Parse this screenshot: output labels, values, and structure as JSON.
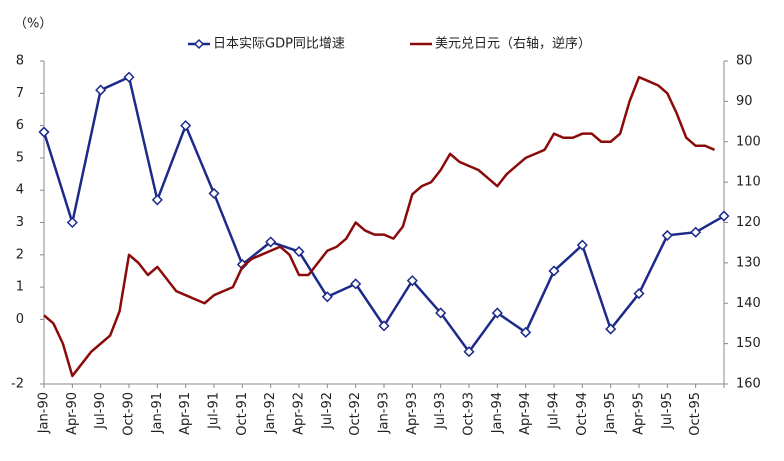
{
  "chart_data": {
    "type": "line",
    "y_label": "（%）",
    "categories": [
      "Jan-90",
      "Apr-90",
      "Jul-90",
      "Oct-90",
      "Jan-91",
      "Apr-91",
      "Jul-91",
      "Oct-91",
      "Jan-92",
      "Apr-92",
      "Jul-92",
      "Oct-92",
      "Jan-93",
      "Apr-93",
      "Jul-93",
      "Oct-93",
      "Jan-94",
      "Apr-94",
      "Jul-94",
      "Oct-94",
      "Jan-95",
      "Apr-95",
      "Jul-95",
      "Oct-95",
      null
    ],
    "series": [
      {
        "name": "日本实际GDP同比增速",
        "color": "#1c2a8a",
        "marker": "diamond",
        "values": [
          5.8,
          3.0,
          7.1,
          7.5,
          3.7,
          6.0,
          3.9,
          1.7,
          2.4,
          2.1,
          0.7,
          1.1,
          -0.2,
          1.2,
          0.2,
          -1.0,
          0.2,
          -0.4,
          1.5,
          2.3,
          -0.3,
          0.8,
          2.6,
          2.7,
          3.2
        ]
      },
      {
        "name": "美元兑日元（右轴，逆序）",
        "color": "#8b0a0a",
        "axis": "y2",
        "x": [
          "Jan-90",
          "Feb-90",
          "Mar-90",
          "Apr-90",
          "May-90",
          "Jun-90",
          "Jul-90",
          "Aug-90",
          "Sep-90",
          "Oct-90",
          "Nov-90",
          "Dec-90",
          "Jan-91",
          "Feb-91",
          "Mar-91",
          "Apr-91",
          "May-91",
          "Jun-91",
          "Jul-91",
          "Aug-91",
          "Sep-91",
          "Oct-91",
          "Nov-91",
          "Dec-91",
          "Jan-92",
          "Feb-92",
          "Mar-92",
          "Apr-92",
          "May-92",
          "Jun-92",
          "Jul-92",
          "Aug-92",
          "Sep-92",
          "Oct-92",
          "Nov-92",
          "Dec-92",
          "Jan-93",
          "Feb-93",
          "Mar-93",
          "Apr-93",
          "May-93",
          "Jun-93",
          "Jul-93",
          "Aug-93",
          "Sep-93",
          "Oct-93",
          "Nov-93",
          "Dec-93",
          "Jan-94",
          "Feb-94",
          "Mar-94",
          "Apr-94",
          "May-94",
          "Jun-94",
          "Jul-94",
          "Aug-94",
          "Sep-94",
          "Oct-94",
          "Nov-94",
          "Dec-94",
          "Jan-95",
          "Feb-95",
          "Mar-95",
          "Apr-95",
          "May-95",
          "Jun-95",
          "Jul-95",
          "Aug-95",
          "Sep-95",
          "Oct-95",
          "Nov-95",
          "Dec-95"
        ],
        "values": [
          143,
          145,
          150,
          158,
          155,
          152,
          150,
          148,
          142,
          128,
          130,
          133,
          131,
          134,
          137,
          138,
          139,
          140,
          138,
          137,
          136,
          131,
          129,
          128,
          127,
          126,
          128,
          133,
          133,
          130,
          127,
          126,
          124,
          120,
          122,
          123,
          123,
          124,
          121,
          113,
          111,
          110,
          107,
          103,
          105,
          106,
          107,
          109,
          111,
          108,
          106,
          104,
          103,
          102,
          98,
          99,
          99,
          98,
          98,
          100,
          100,
          98,
          90,
          84,
          85,
          86,
          88,
          93,
          99,
          101,
          101,
          102
        ]
      }
    ],
    "ylim": [
      -2,
      8
    ],
    "yticks": [
      -2,
      0,
      1,
      2,
      3,
      4,
      5,
      6,
      7,
      8
    ],
    "y2lim": [
      80,
      160
    ],
    "y2ticks": [
      80,
      90,
      100,
      110,
      120,
      130,
      140,
      150,
      160
    ],
    "y2_reverse": true,
    "legend": "top"
  }
}
